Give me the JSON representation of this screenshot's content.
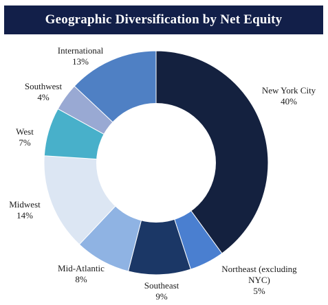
{
  "chart_data": {
    "type": "pie",
    "style": "donut",
    "title": "Geographic Diversification by Net Equity",
    "start_angle_deg": 0,
    "direction": "clockwise",
    "legend": "none",
    "slices": [
      {
        "label": "New York City",
        "value": 40,
        "value_label": "40%",
        "color": "#14213f"
      },
      {
        "label": "Northeast (excluding NYC)",
        "value": 5,
        "value_label": "5%",
        "color": "#4a7fd0"
      },
      {
        "label": "Southeast",
        "value": 9,
        "value_label": "9%",
        "color": "#1b3766"
      },
      {
        "label": "Mid-Atlantic",
        "value": 8,
        "value_label": "8%",
        "color": "#8fb3e3"
      },
      {
        "label": "Midwest",
        "value": 14,
        "value_label": "14%",
        "color": "#dce6f3"
      },
      {
        "label": "West",
        "value": 7,
        "value_label": "7%",
        "color": "#48b0ca"
      },
      {
        "label": "Southwest",
        "value": 4,
        "value_label": "4%",
        "color": "#99a9d3"
      },
      {
        "label": "International",
        "value": 13,
        "value_label": "13%",
        "color": "#4f80c4"
      }
    ]
  }
}
